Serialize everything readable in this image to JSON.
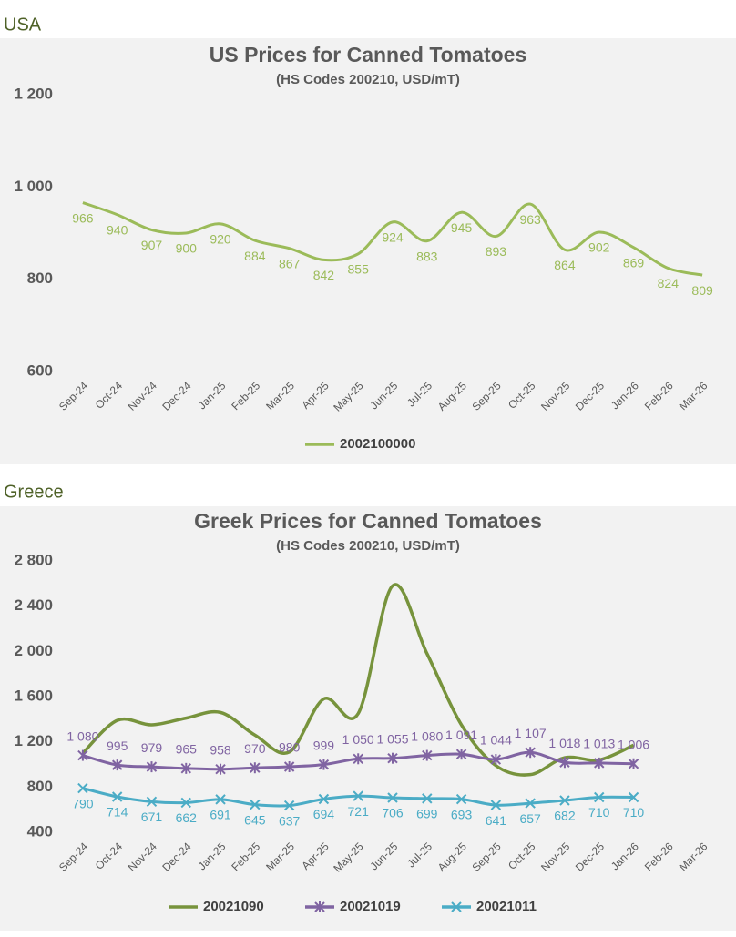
{
  "chart_data": [
    {
      "type": "line",
      "section": "USA",
      "title": "US Prices for Canned Tomatoes",
      "subtitle": "(HS Codes 200210, USD/mT)",
      "categories": [
        "Sep-24",
        "Oct-24",
        "Nov-24",
        "Dec-24",
        "Jan-25",
        "Feb-25",
        "Mar-25",
        "Apr-25",
        "May-25",
        "Jun-25",
        "Jul-25",
        "Aug-25",
        "Sep-25",
        "Oct-25",
        "Nov-25",
        "Dec-25",
        "Jan-26",
        "Feb-26",
        "Mar-26"
      ],
      "series": [
        {
          "name": "2002100000",
          "color": "#9bbb59",
          "marker": "none",
          "values": [
            966,
            940,
            907,
            900,
            920,
            884,
            867,
            842,
            855,
            924,
            883,
            945,
            893,
            963,
            864,
            902,
            869,
            824,
            809
          ]
        }
      ],
      "ylim": [
        600,
        1200
      ],
      "yticks": [
        600,
        800,
        {
          "value": 1000,
          "label": "1 000"
        },
        {
          "value": 1200,
          "label": "1 200"
        }
      ],
      "grid": false
    },
    {
      "type": "line",
      "section": "Greece",
      "title": "Greek Prices for Canned Tomatoes",
      "subtitle": "(HS Codes 200210, USD/mT)",
      "categories": [
        "Sep-24",
        "Oct-24",
        "Nov-24",
        "Dec-24",
        "Jan-25",
        "Feb-25",
        "Mar-25",
        "Apr-25",
        "May-25",
        "Jun-25",
        "Jul-25",
        "Aug-25",
        "Sep-25",
        "Oct-25",
        "Nov-25",
        "Dec-25",
        "Jan-26",
        "Feb-26",
        "Mar-26"
      ],
      "series": [
        {
          "name": "20021090",
          "color": "#77933c",
          "marker": "none",
          "values": [
            1100,
            1390,
            1350,
            1410,
            1460,
            1260,
            1110,
            1580,
            1450,
            2580,
            1980,
            1350,
            990,
            910,
            1060,
            1040,
            1170,
            null,
            null
          ]
        },
        {
          "name": "20021019",
          "color": "#8064a2",
          "marker": "star",
          "values": [
            1080,
            995,
            979,
            965,
            958,
            970,
            980,
            999,
            1050,
            1055,
            1080,
            1091,
            1044,
            1107,
            1018,
            1013,
            1006,
            null,
            null
          ],
          "value_labels": [
            "1 080",
            "995",
            "979",
            "965",
            "958",
            "970",
            "980",
            "999",
            "1 050",
            "1 055",
            "1 080",
            "1 091",
            "1 044",
            "1 107",
            "1 018",
            "1 013",
            "1 006",
            null,
            null
          ]
        },
        {
          "name": "20021011",
          "color": "#4bacc6",
          "marker": "x",
          "values": [
            790,
            714,
            671,
            662,
            691,
            645,
            637,
            694,
            721,
            706,
            699,
            693,
            641,
            657,
            682,
            710,
            710,
            null,
            null
          ]
        }
      ],
      "ylim": [
        400,
        2800
      ],
      "yticks": [
        400,
        800,
        {
          "value": 1200,
          "label": "1 200"
        },
        {
          "value": 1600,
          "label": "1 600"
        },
        {
          "value": 2000,
          "label": "2 000"
        },
        {
          "value": 2400,
          "label": "2 400"
        },
        {
          "value": 2800,
          "label": "2 800"
        }
      ],
      "grid": false
    }
  ]
}
